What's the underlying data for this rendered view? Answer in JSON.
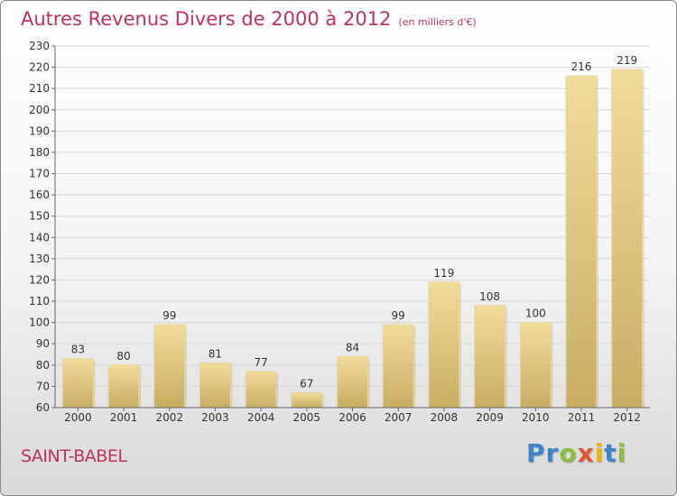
{
  "chart_data": {
    "type": "bar",
    "title": "Autres Revenus Divers de 2000 à 2012",
    "subtitle": "(en milliers d'€)",
    "categories": [
      "2000",
      "2001",
      "2002",
      "2003",
      "2004",
      "2005",
      "2006",
      "2007",
      "2008",
      "2009",
      "2010",
      "2011",
      "2012"
    ],
    "values": [
      83,
      80,
      99,
      81,
      77,
      67,
      84,
      99,
      119,
      108,
      100,
      216,
      219
    ],
    "ylim": [
      60,
      230
    ],
    "yticks": [
      60,
      70,
      80,
      90,
      100,
      110,
      120,
      130,
      140,
      150,
      160,
      170,
      180,
      190,
      200,
      210,
      220,
      230
    ],
    "grid": true,
    "xlabel": "",
    "ylabel": ""
  },
  "footer": {
    "place": "SAINT-BABEL",
    "logo_letters": [
      {
        "ch": "P",
        "color": "#3a86c8"
      },
      {
        "ch": "r",
        "color": "#3a86c8"
      },
      {
        "ch": "o",
        "color": "#8dbf3d"
      },
      {
        "ch": "x",
        "color": "#e4572e"
      },
      {
        "ch": "i",
        "color": "#f2b705"
      },
      {
        "ch": "t",
        "color": "#3a86c8"
      },
      {
        "ch": "i",
        "color": "#8dbf3d"
      }
    ]
  },
  "colors": {
    "accent": "#c0325a",
    "bar_top": "#f2dc9a",
    "bar_bottom": "#c8ad62",
    "grid": "#d8d8d8",
    "axis_text": "#333333"
  }
}
